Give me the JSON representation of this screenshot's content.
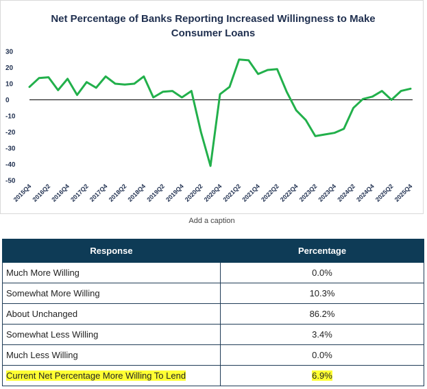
{
  "chart_data": {
    "type": "line",
    "title": "Net Percentage of Banks Reporting Increased Willingness to Make Consumer Loans",
    "title_lines": [
      "Net Percentage of Banks Reporting Increased Willingness to Make",
      "Consumer Loans"
    ],
    "xlabel": "",
    "ylabel": "",
    "ylim": [
      -50,
      30
    ],
    "yticks": [
      30,
      20,
      10,
      0,
      -10,
      -20,
      -30,
      -40,
      -50
    ],
    "line_color": "#22b04b",
    "x": [
      "2015Q4",
      "2016Q1",
      "2016Q2",
      "2016Q3",
      "2016Q4",
      "2017Q1",
      "2017Q2",
      "2017Q3",
      "2017Q4",
      "2018Q1",
      "2018Q2",
      "2018Q3",
      "2018Q4",
      "2019Q1",
      "2019Q2",
      "2019Q3",
      "2019Q4",
      "2020Q1",
      "2020Q2",
      "2020Q3",
      "2020Q4",
      "2021Q1",
      "2021Q2",
      "2021Q3",
      "2021Q4",
      "2022Q1",
      "2022Q2",
      "2022Q3",
      "2022Q4",
      "2023Q1",
      "2023Q2",
      "2023Q3",
      "2023Q4",
      "2024Q1",
      "2024Q2",
      "2024Q3",
      "2024Q4",
      "2025Q1",
      "2025Q2",
      "2025Q3",
      "2025Q4"
    ],
    "x_tick_labels": [
      "2015Q4",
      "2016Q2",
      "2016Q4",
      "2017Q2",
      "2017Q4",
      "2018Q2",
      "2018Q4",
      "2019Q2",
      "2019Q4",
      "2020Q2",
      "2020Q4",
      "2021Q2",
      "2021Q4",
      "2022Q2",
      "2022Q4",
      "2023Q2",
      "2023Q4",
      "2024Q2",
      "2024Q4",
      "2025Q2",
      "2025Q4"
    ],
    "series": [
      {
        "name": "Net Percentage",
        "values": [
          8,
          13.5,
          14,
          6,
          13,
          3,
          11,
          7.5,
          14.5,
          10,
          9.5,
          10,
          14.5,
          1.5,
          5,
          5.5,
          1.5,
          5.5,
          -20,
          -41,
          3.5,
          8,
          25,
          24.5,
          16,
          18.5,
          19,
          5,
          -6.5,
          -12.5,
          -22.5,
          -21.5,
          -20.5,
          -18,
          -5,
          0.5,
          2,
          5.5,
          0,
          5.5,
          6.9
        ]
      }
    ]
  },
  "caption": "Add a caption",
  "table": {
    "headers": [
      "Response",
      "Percentage"
    ],
    "rows": [
      {
        "response": "Much More Willing",
        "percentage": "0.0%"
      },
      {
        "response": "Somewhat More Willing",
        "percentage": "10.3%"
      },
      {
        "response": "About Unchanged",
        "percentage": "86.2%"
      },
      {
        "response": "Somewhat Less Willing",
        "percentage": "3.4%"
      },
      {
        "response": "Much Less Willing",
        "percentage": "0.0%"
      }
    ],
    "summary": {
      "response": "Current Net Percentage More Willing To Lend",
      "percentage": "6.9%",
      "highlight_color": "#ffff33"
    }
  }
}
